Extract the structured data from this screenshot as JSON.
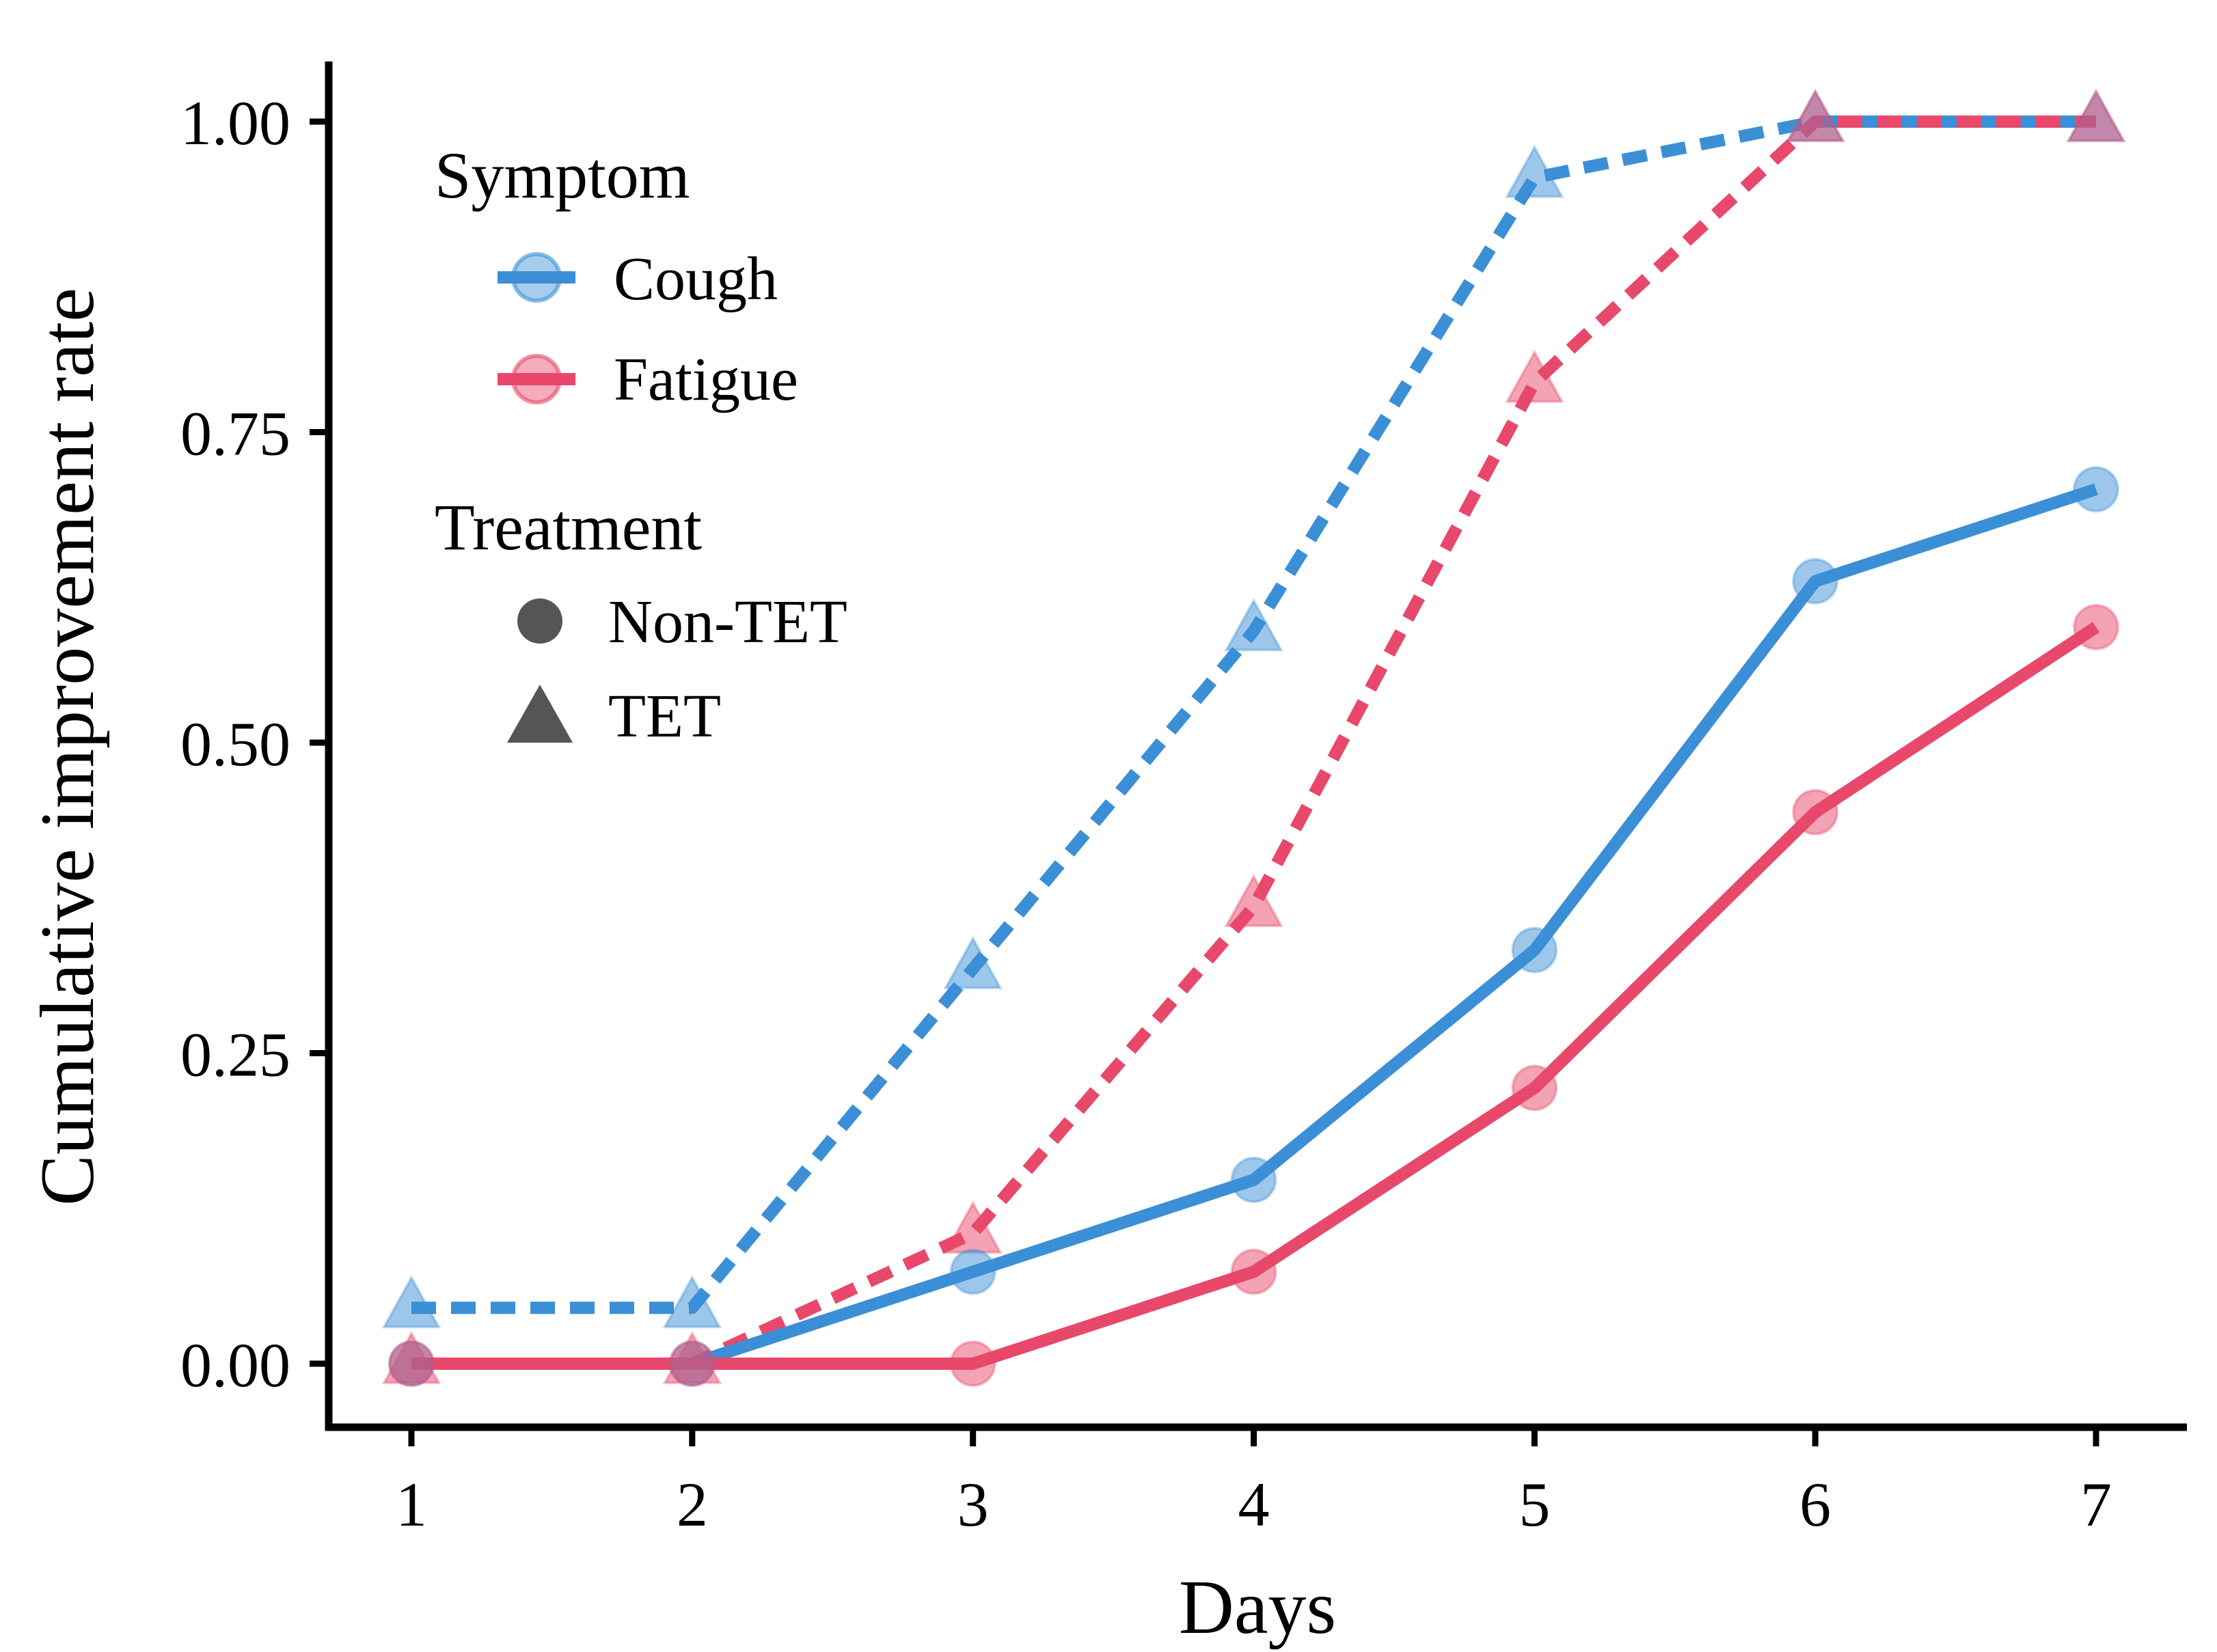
{
  "chart_data": {
    "type": "line",
    "xlabel": "Days",
    "ylabel": "Cumulative improvement rate",
    "x": [
      1,
      2,
      3,
      4,
      5,
      6,
      7
    ],
    "xlim": [
      1,
      7
    ],
    "ylim": [
      0,
      1
    ],
    "x_ticks": [
      "1",
      "2",
      "3",
      "4",
      "5",
      "6",
      "7"
    ],
    "y_ticks": [
      {
        "value": 0,
        "label": "0.00"
      },
      {
        "value": 0.25,
        "label": "0.25"
      },
      {
        "value": 0.5,
        "label": "0.50"
      },
      {
        "value": 0.75,
        "label": "0.75"
      },
      {
        "value": 1,
        "label": "1.00"
      }
    ],
    "grid": false,
    "legend": {
      "position": "top-left",
      "symptom_title": "Symptom",
      "symptom_items": [
        {
          "label": "Cough",
          "color": "#3b8fd6"
        },
        {
          "label": "Fatigue",
          "color": "#e8486a"
        }
      ],
      "treatment_title": "Treatment",
      "treatment_items": [
        {
          "label": "Non-TET",
          "shape": "circle",
          "line": "solid"
        },
        {
          "label": "TET",
          "shape": "triangle",
          "line": "dashed"
        }
      ]
    },
    "series": [
      {
        "name": "Cough TET",
        "symptom": "Cough",
        "treatment": "TET",
        "color": "#3b8fd6",
        "shape": "triangle",
        "line": "dashed",
        "values": [
          0.045,
          0.045,
          0.318,
          0.59,
          0.955,
          1.0,
          1.0
        ]
      },
      {
        "name": "Fatigue TET",
        "symptom": "Fatigue",
        "treatment": "TET",
        "color": "#e8486a",
        "shape": "triangle",
        "line": "dashed",
        "values": [
          0.0,
          0.0,
          0.105,
          0.368,
          0.79,
          1.0,
          1.0
        ]
      },
      {
        "name": "Cough Non-TET",
        "symptom": "Cough",
        "treatment": "Non-TET",
        "color": "#3b8fd6",
        "shape": "circle",
        "line": "solid",
        "values": [
          0.0,
          0.0,
          0.074,
          0.148,
          0.333,
          0.63,
          0.704
        ]
      },
      {
        "name": "Fatigue Non-TET",
        "symptom": "Fatigue",
        "treatment": "Non-TET",
        "color": "#e8486a",
        "shape": "circle",
        "line": "solid",
        "values": [
          0.0,
          0.0,
          0.0,
          0.074,
          0.222,
          0.444,
          0.593
        ]
      }
    ]
  }
}
